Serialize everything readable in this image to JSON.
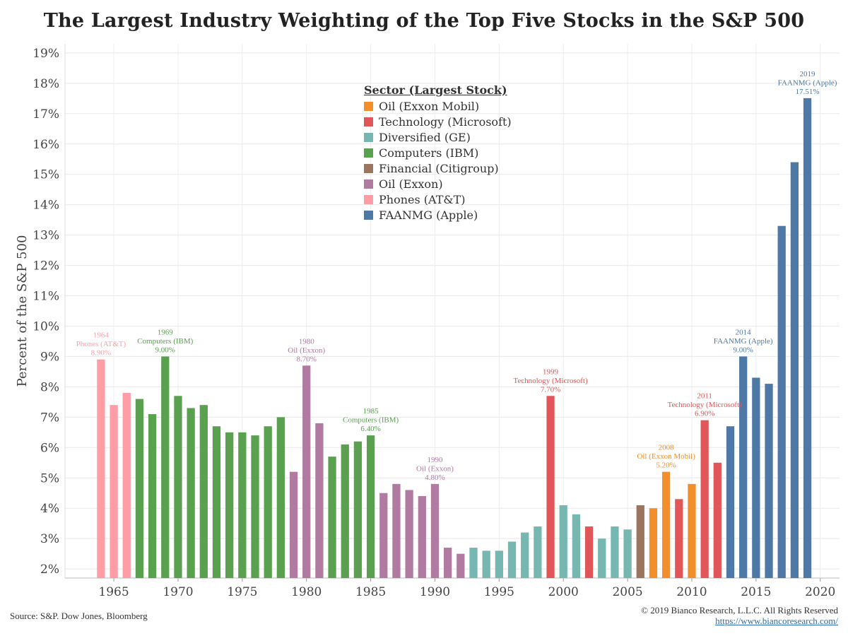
{
  "title": "The Largest Industry Weighting of the Top Five Stocks in the S&P 500",
  "source": "Source: S&P. Dow Jones, Bloomberg",
  "copyright": "© 2019 Bianco Research, L.L.C. All Rights Reserved",
  "website": "https://www.biancoresearch.com/",
  "legend": {
    "title": "Sector (Largest Stock)",
    "items": [
      {
        "label": "Oil (Exxon Mobil)",
        "color": "#f28e2b"
      },
      {
        "label": "Technology (Microsoft)",
        "color": "#e15759"
      },
      {
        "label": "Diversified (GE)",
        "color": "#76b7b2"
      },
      {
        "label": "Computers (IBM)",
        "color": "#59a14f"
      },
      {
        "label": "Financial (Citigroup)",
        "color": "#9c755f"
      },
      {
        "label": "Oil (Exxon)",
        "color": "#b07aa1"
      },
      {
        "label": "Phones (AT&T)",
        "color": "#ff9da7"
      },
      {
        "label": "FAANMG (Apple)",
        "color": "#4e79a7"
      }
    ]
  },
  "chart_data": {
    "type": "bar",
    "ylabel": "Percent of the S&P 500",
    "xlabel": "",
    "ylim": [
      1.7,
      19.3
    ],
    "xlim": [
      1961.2,
      2021.5
    ],
    "y_ticks": [
      "2%",
      "3%",
      "4%",
      "5%",
      "6%",
      "7%",
      "8%",
      "9%",
      "10%",
      "11%",
      "12%",
      "13%",
      "14%",
      "15%",
      "16%",
      "17%",
      "18%",
      "19%"
    ],
    "y_tick_values": [
      2,
      3,
      4,
      5,
      6,
      7,
      8,
      9,
      10,
      11,
      12,
      13,
      14,
      15,
      16,
      17,
      18,
      19
    ],
    "x_ticks": [
      "1965",
      "1970",
      "1975",
      "1980",
      "1985",
      "1990",
      "1995",
      "2000",
      "2005",
      "2010",
      "2015",
      "2020"
    ],
    "x_tick_values": [
      1965,
      1970,
      1975,
      1980,
      1985,
      1990,
      1995,
      2000,
      2005,
      2010,
      2015,
      2020
    ],
    "grid": true,
    "bars": [
      {
        "year": 1964,
        "value": 8.9,
        "sector": "Phones (AT&T)"
      },
      {
        "year": 1965,
        "value": 7.4,
        "sector": "Phones (AT&T)"
      },
      {
        "year": 1966,
        "value": 7.8,
        "sector": "Phones (AT&T)"
      },
      {
        "year": 1967,
        "value": 7.6,
        "sector": "Computers (IBM)"
      },
      {
        "year": 1968,
        "value": 7.1,
        "sector": "Computers (IBM)"
      },
      {
        "year": 1969,
        "value": 9.0,
        "sector": "Computers (IBM)"
      },
      {
        "year": 1970,
        "value": 7.7,
        "sector": "Computers (IBM)"
      },
      {
        "year": 1971,
        "value": 7.3,
        "sector": "Computers (IBM)"
      },
      {
        "year": 1972,
        "value": 7.4,
        "sector": "Computers (IBM)"
      },
      {
        "year": 1973,
        "value": 6.7,
        "sector": "Computers (IBM)"
      },
      {
        "year": 1974,
        "value": 6.5,
        "sector": "Computers (IBM)"
      },
      {
        "year": 1975,
        "value": 6.5,
        "sector": "Computers (IBM)"
      },
      {
        "year": 1976,
        "value": 6.4,
        "sector": "Computers (IBM)"
      },
      {
        "year": 1977,
        "value": 6.7,
        "sector": "Computers (IBM)"
      },
      {
        "year": 1978,
        "value": 7.0,
        "sector": "Computers (IBM)"
      },
      {
        "year": 1979,
        "value": 5.2,
        "sector": "Oil (Exxon)"
      },
      {
        "year": 1980,
        "value": 8.7,
        "sector": "Oil (Exxon)"
      },
      {
        "year": 1981,
        "value": 6.8,
        "sector": "Oil (Exxon)"
      },
      {
        "year": 1982,
        "value": 5.7,
        "sector": "Computers (IBM)"
      },
      {
        "year": 1983,
        "value": 6.1,
        "sector": "Computers (IBM)"
      },
      {
        "year": 1984,
        "value": 6.2,
        "sector": "Computers (IBM)"
      },
      {
        "year": 1985,
        "value": 6.4,
        "sector": "Computers (IBM)"
      },
      {
        "year": 1986,
        "value": 4.5,
        "sector": "Oil (Exxon)"
      },
      {
        "year": 1987,
        "value": 4.8,
        "sector": "Oil (Exxon)"
      },
      {
        "year": 1988,
        "value": 4.6,
        "sector": "Oil (Exxon)"
      },
      {
        "year": 1989,
        "value": 4.4,
        "sector": "Oil (Exxon)"
      },
      {
        "year": 1990,
        "value": 4.8,
        "sector": "Oil (Exxon)"
      },
      {
        "year": 1991,
        "value": 2.7,
        "sector": "Oil (Exxon)"
      },
      {
        "year": 1992,
        "value": 2.5,
        "sector": "Oil (Exxon)"
      },
      {
        "year": 1993,
        "value": 2.7,
        "sector": "Diversified (GE)"
      },
      {
        "year": 1994,
        "value": 2.6,
        "sector": "Diversified (GE)"
      },
      {
        "year": 1995,
        "value": 2.6,
        "sector": "Diversified (GE)"
      },
      {
        "year": 1996,
        "value": 2.9,
        "sector": "Diversified (GE)"
      },
      {
        "year": 1997,
        "value": 3.2,
        "sector": "Diversified (GE)"
      },
      {
        "year": 1998,
        "value": 3.4,
        "sector": "Diversified (GE)"
      },
      {
        "year": 1999,
        "value": 7.7,
        "sector": "Technology (Microsoft)"
      },
      {
        "year": 2000,
        "value": 4.1,
        "sector": "Diversified (GE)"
      },
      {
        "year": 2001,
        "value": 3.8,
        "sector": "Diversified (GE)"
      },
      {
        "year": 2002,
        "value": 3.4,
        "sector": "Technology (Microsoft)"
      },
      {
        "year": 2003,
        "value": 3.0,
        "sector": "Diversified (GE)"
      },
      {
        "year": 2004,
        "value": 3.4,
        "sector": "Diversified (GE)"
      },
      {
        "year": 2005,
        "value": 3.3,
        "sector": "Diversified (GE)"
      },
      {
        "year": 2006,
        "value": 4.1,
        "sector": "Financial (Citigroup)"
      },
      {
        "year": 2007,
        "value": 4.0,
        "sector": "Oil (Exxon Mobil)"
      },
      {
        "year": 2008,
        "value": 5.2,
        "sector": "Oil (Exxon Mobil)"
      },
      {
        "year": 2009,
        "value": 4.3,
        "sector": "Technology (Microsoft)"
      },
      {
        "year": 2010,
        "value": 4.8,
        "sector": "Oil (Exxon Mobil)"
      },
      {
        "year": 2011,
        "value": 6.9,
        "sector": "Technology (Microsoft)"
      },
      {
        "year": 2012,
        "value": 5.5,
        "sector": "Technology (Microsoft)"
      },
      {
        "year": 2013,
        "value": 6.7,
        "sector": "FAANMG (Apple)"
      },
      {
        "year": 2014,
        "value": 9.0,
        "sector": "FAANMG (Apple)"
      },
      {
        "year": 2015,
        "value": 8.3,
        "sector": "FAANMG (Apple)"
      },
      {
        "year": 2016,
        "value": 8.1,
        "sector": "FAANMG (Apple)"
      },
      {
        "year": 2017,
        "value": 13.3,
        "sector": "FAANMG (Apple)"
      },
      {
        "year": 2018,
        "value": 15.4,
        "sector": "FAANMG (Apple)"
      },
      {
        "year": 2019,
        "value": 17.51,
        "sector": "FAANMG (Apple)"
      }
    ],
    "annotations": [
      {
        "year": 1964,
        "value": 8.9,
        "lines": [
          "1964",
          "Phones (AT&T)",
          "8.90%"
        ],
        "color": "#ff9da7"
      },
      {
        "year": 1969,
        "value": 9.0,
        "lines": [
          "1969",
          "Computers (IBM)",
          "9.00%"
        ],
        "color": "#59a14f"
      },
      {
        "year": 1980,
        "value": 8.7,
        "lines": [
          "1980",
          "Oil (Exxon)",
          "8.70%"
        ],
        "color": "#b07aa1"
      },
      {
        "year": 1985,
        "value": 6.4,
        "lines": [
          "1985",
          "Computers (IBM)",
          "6.40%"
        ],
        "color": "#59a14f"
      },
      {
        "year": 1990,
        "value": 4.8,
        "lines": [
          "1990",
          "Oil (Exxon)",
          "4.80%"
        ],
        "color": "#b07aa1"
      },
      {
        "year": 1999,
        "value": 7.7,
        "lines": [
          "1999",
          "Technology (Microsoft)",
          "7.70%"
        ],
        "color": "#e15759"
      },
      {
        "year": 2008,
        "value": 5.2,
        "lines": [
          "2008",
          "Oil (Exxon Mobil)",
          "5.20%"
        ],
        "color": "#f28e2b"
      },
      {
        "year": 2011,
        "value": 6.9,
        "lines": [
          "2011",
          "Technology (Microsoft)",
          "6.90%"
        ],
        "color": "#e15759"
      },
      {
        "year": 2014,
        "value": 9.0,
        "lines": [
          "2014",
          "FAANMG (Apple)",
          "9.00%"
        ],
        "color": "#4e79a7"
      },
      {
        "year": 2019,
        "value": 17.51,
        "lines": [
          "2019",
          "FAANMG (Apple)",
          "17.51%"
        ],
        "color": "#4e79a7"
      }
    ]
  }
}
